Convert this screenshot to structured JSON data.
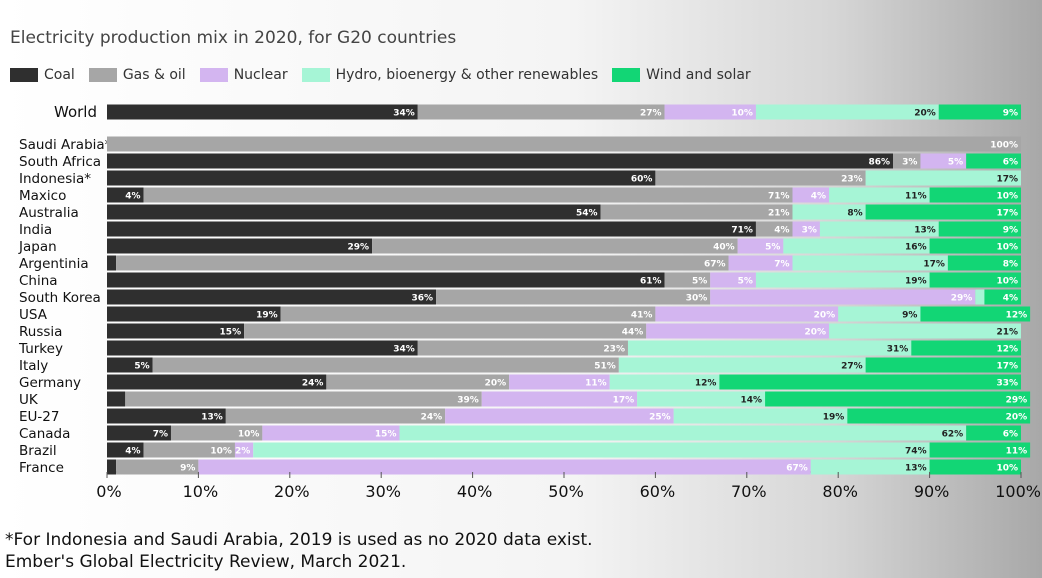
{
  "chart_data": {
    "type": "bar",
    "orientation": "horizontal",
    "stacked": true,
    "title": "Electricity production mix in 2020, for G20 countries",
    "xlim": [
      0,
      100
    ],
    "x_ticks": [
      "0%",
      "10%",
      "20%",
      "30%",
      "40%",
      "50%",
      "60%",
      "70%",
      "80%",
      "90%",
      "100%"
    ],
    "legend_position": "top-left",
    "grid": false,
    "series": [
      {
        "name": "Coal",
        "color": "#2f2f2f"
      },
      {
        "name": "Gas & oil",
        "color": "#a6a6a6"
      },
      {
        "name": "Nuclear",
        "color": "#d3b5f0"
      },
      {
        "name": "Hydro, bioenergy & other renewables",
        "color": "#a6f5d6"
      },
      {
        "name": "Wind and solar",
        "color": "#12d675"
      }
    ],
    "categories": [
      "World",
      "Saudi Arabia*",
      "South Africa",
      "Indonesia*",
      "Maxico",
      "Australia",
      "India",
      "Japan",
      "Argentinia",
      "China",
      "South Korea",
      "USA",
      "Russia",
      "Turkey",
      "Italy",
      "Germany",
      "UK",
      "EU-27",
      "Canada",
      "Brazil",
      "France"
    ],
    "rows": [
      {
        "category": "World",
        "values": [
          34,
          27,
          10,
          20,
          9
        ],
        "labels": [
          "34%",
          "27%",
          "10%",
          "20%",
          "9%"
        ]
      },
      {
        "category": "Saudi Arabia*",
        "values": [
          0,
          100,
          0,
          0,
          0
        ],
        "labels": [
          "",
          "100%",
          "",
          "",
          ""
        ]
      },
      {
        "category": "South Africa",
        "values": [
          86,
          3,
          5,
          0,
          6
        ],
        "labels": [
          "86%",
          "3%",
          "5%",
          "",
          "6%"
        ]
      },
      {
        "category": "Indonesia*",
        "values": [
          60,
          23,
          0,
          17,
          0
        ],
        "labels": [
          "60%",
          "23%",
          "",
          "17%",
          ""
        ]
      },
      {
        "category": "Maxico",
        "values": [
          4,
          71,
          4,
          11,
          10
        ],
        "labels": [
          "4%",
          "71%",
          "4%",
          "11%",
          "10%"
        ]
      },
      {
        "category": "Australia",
        "values": [
          54,
          21,
          0,
          8,
          17
        ],
        "labels": [
          "54%",
          "21%",
          "",
          "8%",
          "17%"
        ]
      },
      {
        "category": "India",
        "values": [
          71,
          4,
          3,
          13,
          9
        ],
        "labels": [
          "71%",
          "4%",
          "3%",
          "13%",
          "9%"
        ]
      },
      {
        "category": "Japan",
        "values": [
          29,
          40,
          5,
          16,
          10
        ],
        "labels": [
          "29%",
          "40%",
          "5%",
          "16%",
          "10%"
        ]
      },
      {
        "category": "Argentinia",
        "values": [
          1,
          67,
          7,
          17,
          8
        ],
        "labels": [
          "",
          "67%",
          "7%",
          "17%",
          "8%"
        ]
      },
      {
        "category": "China",
        "values": [
          61,
          5,
          5,
          19,
          10
        ],
        "labels": [
          "61%",
          "5%",
          "5%",
          "19%",
          "10%"
        ]
      },
      {
        "category": "South Korea",
        "values": [
          36,
          30,
          29,
          1,
          4
        ],
        "labels": [
          "36%",
          "30%",
          "29%",
          "",
          "4%"
        ]
      },
      {
        "category": "USA",
        "values": [
          19,
          41,
          20,
          9,
          12
        ],
        "labels": [
          "19%",
          "41%",
          "20%",
          "9%",
          "12%"
        ]
      },
      {
        "category": "Russia",
        "values": [
          15,
          44,
          20,
          21,
          0
        ],
        "labels": [
          "15%",
          "44%",
          "20%",
          "21%",
          ""
        ]
      },
      {
        "category": "Turkey",
        "values": [
          34,
          23,
          0,
          31,
          12
        ],
        "labels": [
          "34%",
          "23%",
          "",
          "31%",
          "12%"
        ]
      },
      {
        "category": "Italy",
        "values": [
          5,
          51,
          0,
          27,
          17
        ],
        "labels": [
          "5%",
          "51%",
          "",
          "27%",
          "17%"
        ]
      },
      {
        "category": "Germany",
        "values": [
          24,
          20,
          11,
          12,
          33
        ],
        "labels": [
          "24%",
          "20%",
          "11%",
          "12%",
          "33%"
        ]
      },
      {
        "category": "UK",
        "values": [
          2,
          39,
          17,
          14,
          29
        ],
        "labels": [
          "",
          "39%",
          "17%",
          "14%",
          "29%"
        ]
      },
      {
        "category": "EU-27",
        "values": [
          13,
          24,
          25,
          19,
          20
        ],
        "labels": [
          "13%",
          "24%",
          "25%",
          "19%",
          "20%"
        ]
      },
      {
        "category": "Canada",
        "values": [
          7,
          10,
          15,
          62,
          6
        ],
        "labels": [
          "7%",
          "10%",
          "15%",
          "62%",
          "6%"
        ]
      },
      {
        "category": "Brazil",
        "values": [
          4,
          10,
          2,
          74,
          11
        ],
        "labels": [
          "4%",
          "10%",
          "2%",
          "74%",
          "11%"
        ]
      },
      {
        "category": "France",
        "values": [
          1,
          9,
          67,
          13,
          10
        ],
        "labels": [
          "",
          "9%",
          "67%",
          "13%",
          "10%"
        ]
      }
    ]
  },
  "footnote": {
    "line1": "*For Indonesia and Saudi Arabia, 2019 is used as no 2020 data exist.",
    "line2": "Ember's Global Electricity Review, March 2021."
  }
}
